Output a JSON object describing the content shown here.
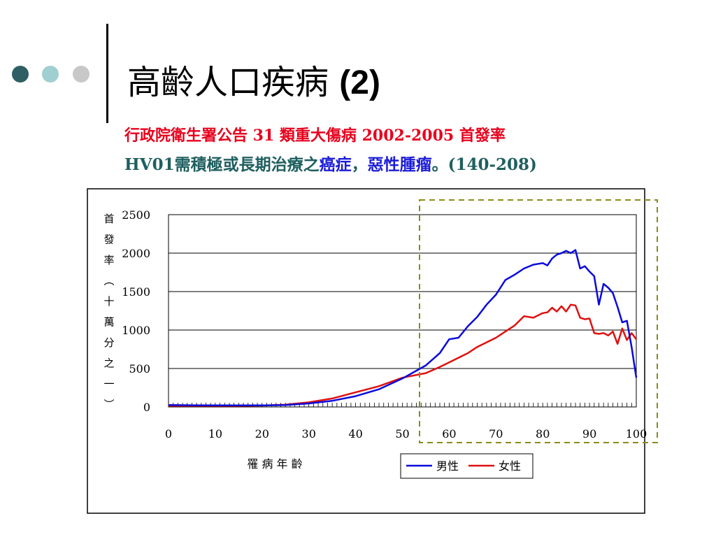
{
  "slide": {
    "title_text": "高齡人口疾病",
    "title_num": "(2)",
    "subtitle1": "行政院衛生署公告 31 類重大傷病  2002-2005 首發率",
    "subtitle2_prefix": "HV01",
    "subtitle2_mid": "需積極或長期治療之",
    "subtitle2_k1": "癌症",
    "subtitle2_comma": "，",
    "subtitle2_k2": "惡性腫瘤",
    "subtitle2_suffix": "。(140-208)"
  },
  "colors": {
    "dot1": "#2e5f63",
    "dot2": "#9fcfd0",
    "dot3": "#c8c8c8",
    "subtitle1": "#e8001c",
    "subtitle2_main": "#1f5f5f",
    "subtitle2_keyword": "#1c1cd8",
    "male": "#0a0adc",
    "female": "#e01010",
    "highlight_box": "#8b8b1a"
  },
  "chart_data": {
    "type": "line",
    "xlabel": "罹 病 年 齡",
    "ylabel_chars": [
      "首",
      "發",
      "率",
      "︵",
      "十",
      "萬",
      "分",
      "之",
      "一",
      "︶"
    ],
    "xlim": [
      0,
      100
    ],
    "ylim": [
      0,
      2500
    ],
    "xticks": [
      0,
      10,
      20,
      30,
      40,
      50,
      60,
      70,
      80,
      90,
      100
    ],
    "yticks": [
      0,
      500,
      1000,
      1500,
      2000,
      2500
    ],
    "grid": true,
    "legend_position": "bottom-right",
    "series": [
      {
        "name": "男性",
        "values": [
          [
            0,
            25
          ],
          [
            5,
            22
          ],
          [
            10,
            20
          ],
          [
            15,
            20
          ],
          [
            20,
            20
          ],
          [
            25,
            25
          ],
          [
            30,
            45
          ],
          [
            35,
            80
          ],
          [
            40,
            140
          ],
          [
            45,
            230
          ],
          [
            50,
            370
          ],
          [
            55,
            540
          ],
          [
            58,
            700
          ],
          [
            60,
            880
          ],
          [
            62,
            900
          ],
          [
            64,
            1050
          ],
          [
            66,
            1170
          ],
          [
            68,
            1330
          ],
          [
            70,
            1460
          ],
          [
            72,
            1650
          ],
          [
            74,
            1720
          ],
          [
            76,
            1800
          ],
          [
            78,
            1850
          ],
          [
            80,
            1870
          ],
          [
            81,
            1840
          ],
          [
            82,
            1930
          ],
          [
            83,
            1980
          ],
          [
            84,
            2000
          ],
          [
            85,
            2030
          ],
          [
            86,
            2000
          ],
          [
            87,
            2040
          ],
          [
            88,
            1800
          ],
          [
            89,
            1830
          ],
          [
            90,
            1760
          ],
          [
            91,
            1700
          ],
          [
            92,
            1330
          ],
          [
            93,
            1600
          ],
          [
            94,
            1550
          ],
          [
            95,
            1480
          ],
          [
            96,
            1300
          ],
          [
            97,
            1100
          ],
          [
            98,
            1120
          ],
          [
            99,
            780
          ],
          [
            100,
            380
          ]
        ]
      },
      {
        "name": "女性",
        "values": [
          [
            0,
            15
          ],
          [
            5,
            15
          ],
          [
            10,
            15
          ],
          [
            15,
            15
          ],
          [
            20,
            18
          ],
          [
            25,
            30
          ],
          [
            30,
            60
          ],
          [
            35,
            110
          ],
          [
            40,
            190
          ],
          [
            45,
            270
          ],
          [
            50,
            380
          ],
          [
            55,
            440
          ],
          [
            58,
            520
          ],
          [
            60,
            580
          ],
          [
            62,
            640
          ],
          [
            64,
            700
          ],
          [
            66,
            780
          ],
          [
            68,
            840
          ],
          [
            70,
            900
          ],
          [
            72,
            980
          ],
          [
            74,
            1060
          ],
          [
            76,
            1180
          ],
          [
            78,
            1160
          ],
          [
            80,
            1220
          ],
          [
            81,
            1230
          ],
          [
            82,
            1290
          ],
          [
            83,
            1240
          ],
          [
            84,
            1310
          ],
          [
            85,
            1240
          ],
          [
            86,
            1330
          ],
          [
            87,
            1320
          ],
          [
            88,
            1160
          ],
          [
            89,
            1140
          ],
          [
            90,
            1150
          ],
          [
            91,
            960
          ],
          [
            92,
            950
          ],
          [
            93,
            960
          ],
          [
            94,
            930
          ],
          [
            95,
            980
          ],
          [
            96,
            820
          ],
          [
            97,
            1020
          ],
          [
            98,
            870
          ],
          [
            99,
            960
          ],
          [
            100,
            880
          ]
        ]
      }
    ]
  }
}
